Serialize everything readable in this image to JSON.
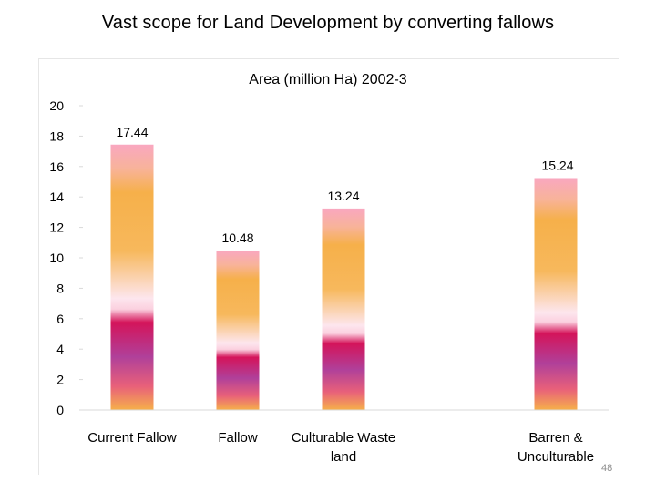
{
  "slide": {
    "title": "Vast scope for Land Development by converting fallows",
    "page_number": "48"
  },
  "chart_data": {
    "type": "bar",
    "title": "Area (million Ha) 2002-3",
    "xlabel": "",
    "ylabel": "",
    "categories": [
      "Current Fallow",
      "Fallow",
      "Culturable Waste land",
      "Barren & Unculturable"
    ],
    "category_lines": [
      [
        "Current Fallow"
      ],
      [
        "Fallow"
      ],
      [
        "Culturable Waste",
        "land"
      ],
      [
        "Barren &",
        "Unculturable"
      ]
    ],
    "values": [
      17.44,
      10.48,
      13.24,
      15.24
    ],
    "data_labels": [
      "17.44",
      "10.48",
      "13.24",
      "15.24"
    ],
    "ylim": [
      0,
      20
    ],
    "yticks": [
      0,
      2,
      4,
      6,
      8,
      10,
      12,
      14,
      16,
      18,
      20
    ],
    "grid": false,
    "legend": "none",
    "colors": {
      "bar_top": "#f9a7c0",
      "bar_orange": "#f6b04a",
      "bar_pale": "#fde6ee",
      "bar_magenta": "#d4145a",
      "bar_purple": "#b0409a",
      "axis": "#d9d9d9"
    }
  }
}
